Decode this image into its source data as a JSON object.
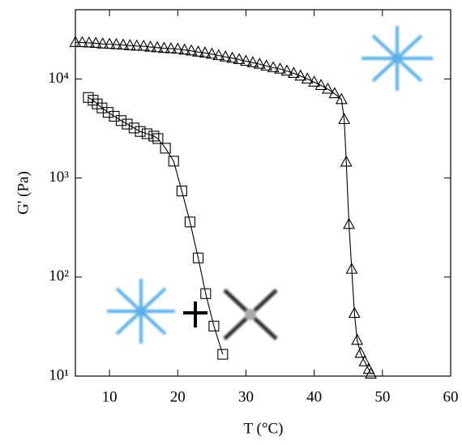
{
  "chart_data": {
    "type": "line",
    "xlabel": "T (°C)",
    "ylabel": "G' (Pa)",
    "xlim": [
      5,
      60
    ],
    "xticks": [
      10,
      20,
      30,
      40,
      50,
      60
    ],
    "ylim": [
      10,
      50000
    ],
    "ylog": true,
    "yticks": [
      {
        "value": 10,
        "label": "10¹"
      },
      {
        "value": 100,
        "label": "10²"
      },
      {
        "value": 1000,
        "label": "10³"
      },
      {
        "value": 10000,
        "label": "10⁴"
      }
    ],
    "series": [
      {
        "color": "#000000",
        "marker": "triangle",
        "x": [
          5,
          6,
          7,
          8,
          9,
          10,
          11,
          12,
          13,
          14,
          15,
          16,
          17,
          18,
          19,
          20,
          21,
          22,
          23,
          24,
          25,
          26,
          27,
          28,
          29,
          30,
          31,
          32,
          33,
          34,
          35,
          36,
          37,
          38,
          39,
          40,
          41,
          42,
          43,
          44,
          44.4,
          44.7,
          45.1,
          45.5,
          45.9,
          46.3,
          46.8,
          47.4,
          48,
          48.3
        ],
        "values": [
          23400,
          23300,
          23100,
          22900,
          22600,
          22400,
          22200,
          22000,
          21700,
          21500,
          21400,
          21000,
          20700,
          20400,
          20200,
          20000,
          19600,
          19200,
          18700,
          18300,
          17800,
          17200,
          16700,
          16200,
          15700,
          15100,
          14600,
          14100,
          13500,
          13000,
          12600,
          12000,
          11400,
          10700,
          10000,
          9300,
          8600,
          7900,
          7100,
          6200,
          3900,
          1450,
          340,
          120,
          43,
          23,
          17,
          14,
          11.7,
          10.5
        ]
      },
      {
        "color": "#000000",
        "marker": "square",
        "x": [
          6.9,
          7.6,
          8.2,
          8.9,
          9.8,
          10.7,
          11.7,
          12.6,
          13.6,
          14.5,
          15.5,
          16.5,
          17.1,
          18.2,
          19.4,
          20.6,
          21.8,
          23.0,
          24.1,
          25.3,
          26.6
        ],
        "values": [
          6500,
          6100,
          5600,
          5100,
          4600,
          4200,
          3800,
          3500,
          3200,
          2950,
          2800,
          2650,
          2500,
          2000,
          1480,
          740,
          360,
          156,
          68,
          32,
          16.6
        ]
      }
    ]
  }
}
